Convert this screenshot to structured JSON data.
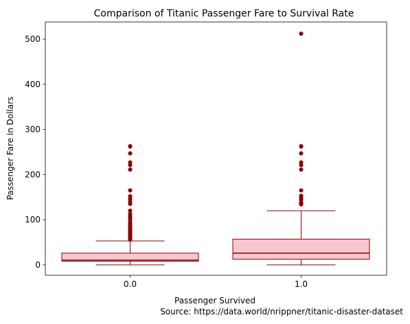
{
  "chart_data": {
    "type": "box",
    "title": "Comparison of Titanic Passenger Fare to Survival Rate",
    "xlabel": "Passenger Survived",
    "ylabel": "Passenger Fare in Dollars",
    "source": "Source: https://data.world/nrippner/titanic-disaster-dataset",
    "categories": [
      "0.0",
      "1.0"
    ],
    "ylim": [
      -23,
      538
    ],
    "yticks": [
      0,
      100,
      200,
      300,
      400,
      500
    ],
    "colors": {
      "box_fill": "#f7c6cf",
      "box_edge": "#8b0000",
      "outlier": "#8b0000"
    },
    "boxes": [
      {
        "category": "0.0",
        "whisker_low": 0,
        "q1": 8,
        "median": 10.5,
        "q3": 26,
        "whisker_high": 53,
        "outliers": [
          56,
          57,
          59,
          61,
          62,
          64,
          66,
          68,
          70,
          72,
          74,
          76,
          78,
          80,
          82,
          86,
          90,
          94,
          100,
          104,
          108,
          113,
          120,
          135,
          140,
          146,
          152,
          165,
          211,
          221,
          227,
          247,
          262,
          263
        ]
      },
      {
        "category": "1.0",
        "whisker_low": 0,
        "q1": 12.5,
        "median": 26,
        "q3": 57,
        "whisker_high": 120,
        "outliers": [
          134,
          135,
          136,
          138,
          144,
          147,
          151,
          153,
          165,
          211,
          221,
          227,
          247,
          262,
          263,
          512
        ]
      }
    ]
  }
}
